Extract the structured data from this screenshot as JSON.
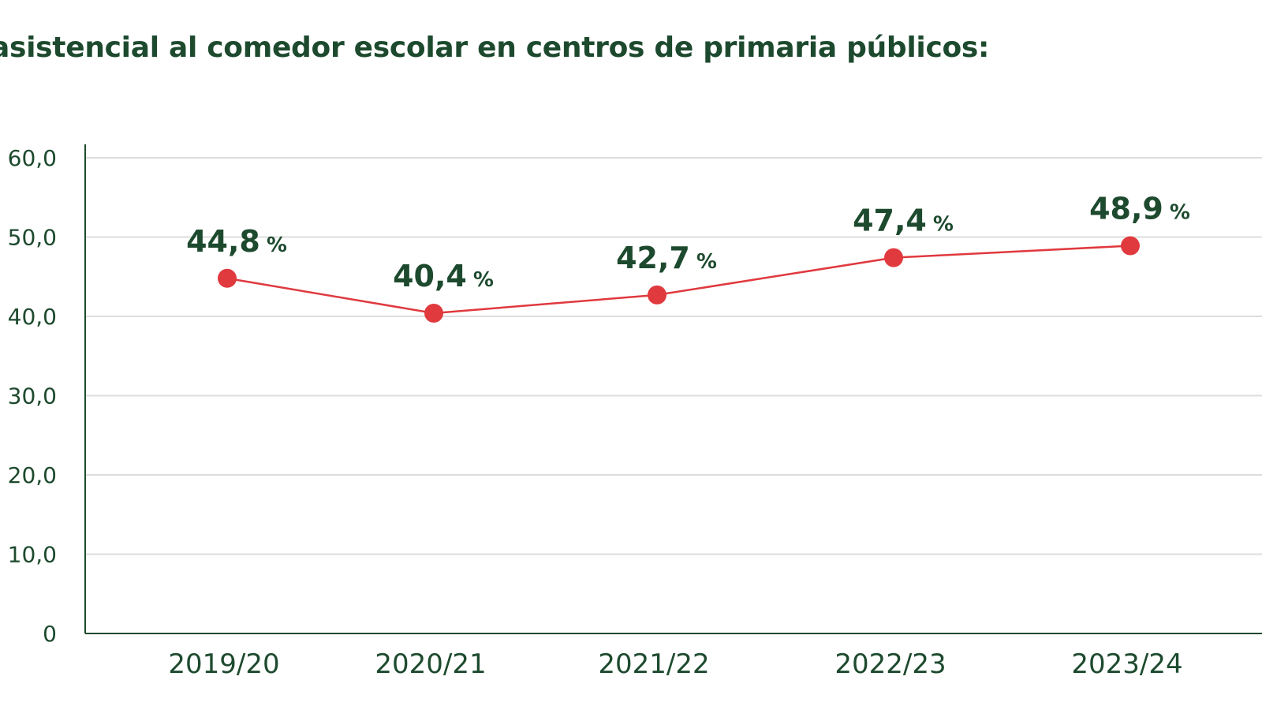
{
  "title": "asistencial al comedor escolar en centros de primaria públicos:",
  "colors": {
    "text": "#1d4a2e",
    "line": "#e0393e",
    "grid": "#dddddd",
    "axis": "#1d4a2e"
  },
  "chart_data": {
    "type": "line",
    "categories": [
      "2019/20",
      "2020/21",
      "2021/22",
      "2022/23",
      "2023/24"
    ],
    "values": [
      44.8,
      40.4,
      42.7,
      47.4,
      48.9
    ],
    "value_labels": [
      "44,8",
      "40,4",
      "42,7",
      "47,4",
      "48,9"
    ],
    "value_suffix": "%",
    "ylim": [
      0,
      60
    ],
    "yticks": [
      "0",
      "10,0",
      "20,0",
      "30,0",
      "40,0",
      "50,0",
      "60,0"
    ],
    "grid": true
  }
}
